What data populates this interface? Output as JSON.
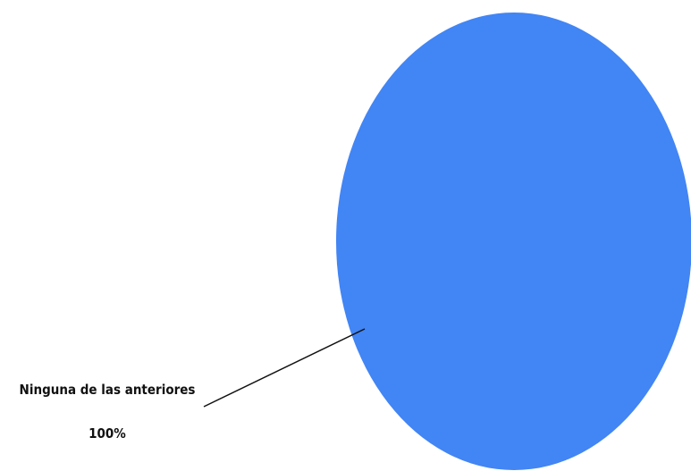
{
  "chart_data": {
    "type": "pie",
    "title": "",
    "slices": [
      {
        "label": "Ninguna de las anteriores",
        "value": 100,
        "percent_label": "100%",
        "color": "#4285f4"
      }
    ],
    "legend": "none",
    "label_style": "outside with leader line"
  }
}
